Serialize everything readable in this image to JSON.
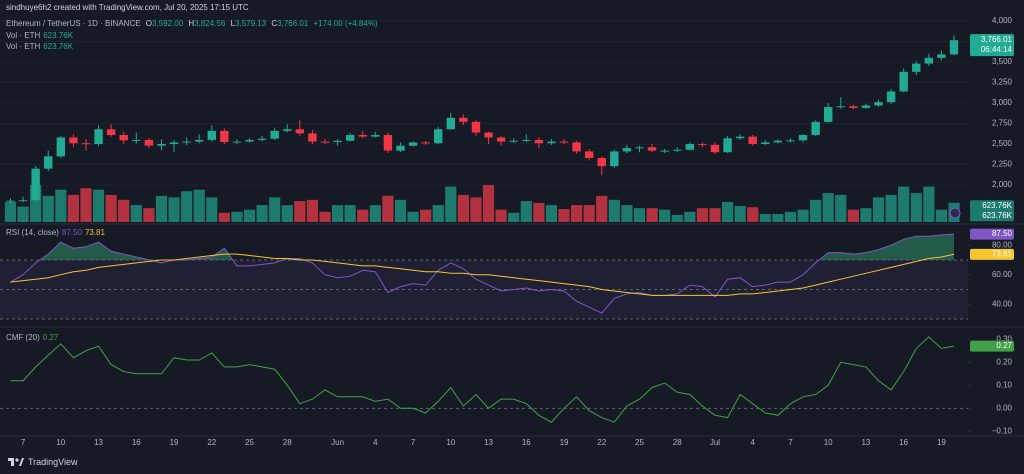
{
  "header": {
    "credit": "sindhuye6h2 created with TradingView.com, Jul 20, 2025 17:15 UTC",
    "symbol": "Ethereum / TetherUS · 1D · BINANCE",
    "keys": [
      "O",
      "H",
      "L",
      "C"
    ],
    "change_label": "+174.00 (+4.84%)"
  },
  "footer": {
    "brand": "TradingView"
  },
  "chart_data": [
    {
      "type": "candlestick",
      "categories": [
        null,
        "7",
        null,
        null,
        "10",
        null,
        null,
        "13",
        null,
        null,
        "16",
        null,
        null,
        "19",
        null,
        null,
        "22",
        null,
        null,
        "25",
        null,
        null,
        "28",
        null,
        null,
        null,
        "Jun",
        null,
        null,
        "4",
        null,
        null,
        "7",
        null,
        null,
        "10",
        null,
        null,
        "13",
        null,
        null,
        "16",
        null,
        null,
        "19",
        null,
        null,
        "22",
        null,
        null,
        "25",
        null,
        null,
        "28",
        null,
        null,
        "Jul",
        null,
        null,
        "4",
        null,
        null,
        "7",
        null,
        null,
        "10",
        null,
        null,
        "13",
        null,
        null,
        "16",
        null,
        null,
        "19",
        null
      ],
      "open": [
        1800,
        1810,
        1815,
        2200,
        2350,
        2580,
        2510,
        2500,
        2680,
        2610,
        2545,
        2550,
        2480,
        2500,
        2520,
        2530,
        2550,
        2660,
        2525,
        2530,
        2550,
        2565,
        2660,
        2680,
        2630,
        2530,
        2525,
        2540,
        2610,
        2590,
        2610,
        2420,
        2480,
        2520,
        2510,
        2680,
        2820,
        2770,
        2640,
        2580,
        2530,
        2540,
        2550,
        2510,
        2530,
        2520,
        2410,
        2330,
        2230,
        2410,
        2450,
        2460,
        2420,
        2420,
        2430,
        2500,
        2490,
        2400,
        2570,
        2590,
        2500,
        2520,
        2540,
        2545,
        2610,
        2770,
        2950,
        2960,
        2940,
        2970,
        3010,
        3140,
        3380,
        3480,
        3550,
        3592
      ],
      "high": [
        1840,
        1860,
        2230,
        2420,
        2600,
        2620,
        2560,
        2730,
        2740,
        2650,
        2640,
        2570,
        2560,
        2550,
        2580,
        2620,
        2730,
        2690,
        2560,
        2570,
        2600,
        2700,
        2740,
        2790,
        2670,
        2560,
        2560,
        2640,
        2660,
        2650,
        2640,
        2520,
        2530,
        2540,
        2710,
        2880,
        2860,
        2790,
        2650,
        2600,
        2570,
        2620,
        2580,
        2560,
        2560,
        2540,
        2440,
        2350,
        2430,
        2490,
        2480,
        2500,
        2440,
        2460,
        2520,
        2520,
        2520,
        2600,
        2620,
        2610,
        2550,
        2560,
        2570,
        2620,
        2790,
        3000,
        3070,
        2980,
        2990,
        3040,
        3170,
        3420,
        3510,
        3600,
        3640,
        3824.56
      ],
      "low": [
        1780,
        1790,
        1800,
        2170,
        2330,
        2460,
        2420,
        2470,
        2590,
        2500,
        2510,
        2450,
        2420,
        2400,
        2490,
        2510,
        2530,
        2500,
        2500,
        2520,
        2530,
        2550,
        2640,
        2600,
        2500,
        2500,
        2480,
        2530,
        2570,
        2580,
        2390,
        2400,
        2470,
        2490,
        2500,
        2670,
        2730,
        2600,
        2500,
        2480,
        2510,
        2520,
        2450,
        2490,
        2500,
        2380,
        2300,
        2120,
        2210,
        2390,
        2400,
        2400,
        2390,
        2400,
        2420,
        2460,
        2380,
        2390,
        2550,
        2480,
        2490,
        2510,
        2520,
        2520,
        2600,
        2760,
        2930,
        2920,
        2930,
        2950,
        2990,
        3130,
        3340,
        3450,
        3520,
        3579.13
      ],
      "close": [
        1810,
        1815,
        2200,
        2350,
        2580,
        2510,
        2500,
        2680,
        2610,
        2545,
        2550,
        2480,
        2500,
        2520,
        2530,
        2550,
        2660,
        2525,
        2530,
        2550,
        2565,
        2660,
        2680,
        2630,
        2530,
        2525,
        2540,
        2610,
        2590,
        2610,
        2420,
        2480,
        2520,
        2510,
        2680,
        2820,
        2770,
        2640,
        2580,
        2530,
        2540,
        2550,
        2510,
        2530,
        2520,
        2410,
        2330,
        2230,
        2410,
        2450,
        2460,
        2420,
        2420,
        2430,
        2500,
        2490,
        2400,
        2570,
        2590,
        2500,
        2520,
        2540,
        2545,
        2610,
        2770,
        2950,
        2960,
        2940,
        2970,
        3010,
        3140,
        3380,
        3480,
        3550,
        3592,
        3766.01
      ],
      "last_labels": [
        "3,592.00",
        "3,824.56",
        "3,579.13",
        "3,766.01"
      ],
      "countdown": "06:44:14",
      "colors": {
        "up": "#22ab94",
        "down": "#f23645"
      },
      "ylim": [
        1550,
        4255
      ],
      "yticks": [
        {
          "value": 2000,
          "label": "2,000"
        },
        {
          "value": 2250,
          "label": "2,250"
        },
        {
          "value": 2500,
          "label": "2,500"
        },
        {
          "value": 2750,
          "label": "2,750"
        },
        {
          "value": 3000,
          "label": "3,000"
        },
        {
          "value": 3250,
          "label": "3,250"
        },
        {
          "value": 3500,
          "label": "3,500"
        },
        {
          "value": 3750,
          "label": "3,750"
        },
        {
          "value": 4000,
          "label": "4,000"
        }
      ],
      "grid": true,
      "volume": {
        "name": "Vol · ETH",
        "last_label": "623.76K",
        "ylim": [
          0,
          2600000
        ],
        "colors": {
          "up": "#1d7a6f",
          "down": "#b3323f"
        },
        "values": [
          650000,
          500000,
          1200000,
          850000,
          1050000,
          880000,
          1100000,
          1050000,
          880000,
          720000,
          550000,
          450000,
          850000,
          800000,
          1000000,
          1050000,
          800000,
          300000,
          330000,
          400000,
          550000,
          800000,
          550000,
          680000,
          720000,
          330000,
          550000,
          550000,
          400000,
          550000,
          850000,
          720000,
          330000,
          400000,
          550000,
          1150000,
          880000,
          800000,
          1200000,
          400000,
          300000,
          680000,
          620000,
          550000,
          420000,
          550000,
          550000,
          850000,
          720000,
          550000,
          450000,
          450000,
          400000,
          230000,
          330000,
          450000,
          450000,
          650000,
          520000,
          480000,
          260000,
          260000,
          330000,
          400000,
          720000,
          940000,
          880000,
          400000,
          450000,
          800000,
          880000,
          1150000,
          940000,
          1150000,
          400000,
          623760
        ]
      }
    },
    {
      "type": "line",
      "title": "RSI (14, close)",
      "series": [
        {
          "color": "#7e57c2",
          "last_label": "87.50",
          "values": [
            55,
            60,
            68,
            74,
            82,
            78,
            79,
            82,
            76,
            74,
            72,
            70,
            68,
            70,
            70,
            71,
            72,
            78,
            66,
            66,
            67,
            68,
            71,
            71,
            68,
            60,
            58,
            59,
            63,
            62,
            48,
            52,
            54,
            53,
            63,
            68,
            64,
            57,
            53,
            49,
            50,
            51,
            49,
            50,
            49,
            42,
            38,
            34,
            44,
            47,
            48,
            46,
            46,
            47,
            53,
            52,
            45,
            57,
            58,
            52,
            53,
            55,
            55,
            60,
            68,
            75,
            75,
            74,
            75,
            77,
            80,
            84,
            86,
            86,
            87,
            87.5
          ]
        },
        {
          "color": "#f7c530",
          "last_label": "73.81",
          "values": [
            55,
            56,
            57,
            58,
            60,
            62,
            63,
            65,
            66,
            67,
            68,
            69,
            70,
            70,
            71,
            72,
            73,
            74,
            74,
            73,
            72,
            71,
            71,
            70,
            70,
            69,
            68,
            67,
            66,
            66,
            65,
            64,
            63,
            62,
            62,
            61,
            61,
            60,
            60,
            59,
            58,
            57,
            56,
            55,
            54,
            53,
            52,
            50,
            49,
            48,
            47,
            46,
            46,
            46,
            46,
            46,
            46,
            46,
            47,
            47,
            48,
            49,
            50,
            51,
            53,
            55,
            57,
            59,
            61,
            63,
            65,
            67,
            69,
            71,
            72,
            73.81
          ]
        }
      ],
      "ylim": [
        28,
        93
      ],
      "yticks": [
        {
          "value": 40,
          "label": "40.00"
        },
        {
          "value": 60,
          "label": "60.00"
        },
        {
          "value": 80,
          "label": "80.00"
        }
      ],
      "levels": [
        70,
        50,
        30
      ],
      "band_color": "#7e57c2",
      "overbought_color": "#2f8f6a",
      "grid": false
    },
    {
      "type": "line",
      "title": "CMF (20)",
      "series": [
        {
          "color": "#43a047",
          "last_label": "0.27",
          "values": [
            0.12,
            0.12,
            0.18,
            0.23,
            0.28,
            0.22,
            0.25,
            0.27,
            0.19,
            0.16,
            0.15,
            0.15,
            0.15,
            0.22,
            0.21,
            0.21,
            0.24,
            0.18,
            0.18,
            0.19,
            0.18,
            0.17,
            0.1,
            0.02,
            0.04,
            0.08,
            0.05,
            0.05,
            0.05,
            0.03,
            0.04,
            0.0,
            0.0,
            -0.02,
            0.03,
            0.09,
            0.01,
            0.06,
            0.0,
            0.04,
            0.04,
            0.02,
            -0.03,
            -0.06,
            0.0,
            0.05,
            -0.01,
            -0.04,
            -0.06,
            0.01,
            0.04,
            0.09,
            0.11,
            0.07,
            0.06,
            0.01,
            -0.03,
            -0.04,
            0.06,
            0.02,
            -0.02,
            -0.03,
            0.02,
            0.05,
            0.06,
            0.1,
            0.2,
            0.19,
            0.18,
            0.12,
            0.08,
            0.16,
            0.26,
            0.31,
            0.26,
            0.27
          ]
        }
      ],
      "ylim": [
        -0.12,
        0.34
      ],
      "yticks": [
        {
          "value": -0.1,
          "label": "−0.10"
        },
        {
          "value": 0,
          "label": "0.00"
        },
        {
          "value": 0.1,
          "label": "0.10"
        },
        {
          "value": 0.2,
          "label": "0.20"
        },
        {
          "value": 0.3,
          "label": "0.30"
        }
      ],
      "levels": [
        0
      ],
      "grid": false
    }
  ]
}
